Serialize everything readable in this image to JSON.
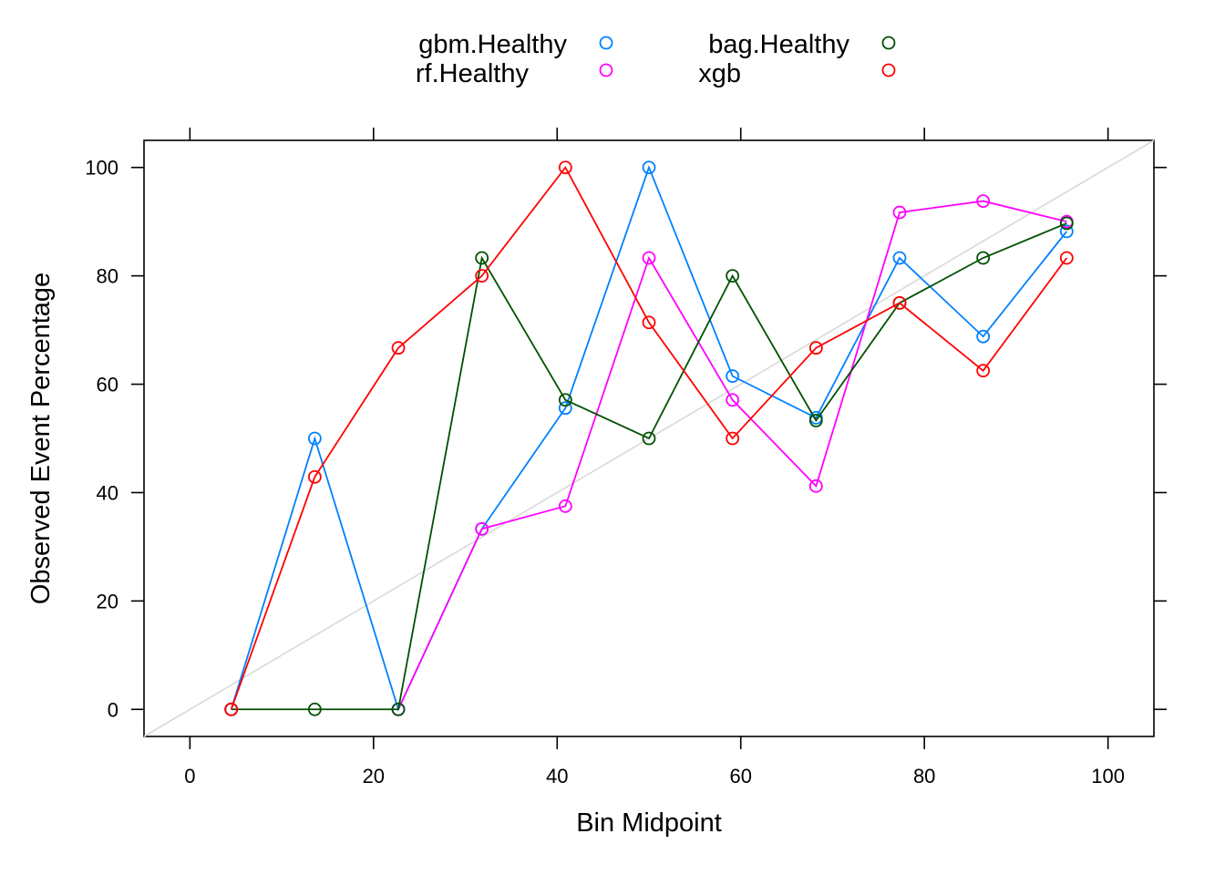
{
  "chart_data": {
    "type": "line",
    "title": "",
    "xlabel": "Bin Midpoint",
    "ylabel": "Observed Event Percentage",
    "xlim": [
      -5,
      105
    ],
    "ylim": [
      -5,
      105
    ],
    "x_ticks": [
      0,
      20,
      40,
      60,
      80,
      100
    ],
    "y_ticks": [
      0,
      20,
      40,
      60,
      80,
      100
    ],
    "grid": false,
    "legend_position": "top",
    "reference_line": {
      "from": [
        -5,
        -5
      ],
      "to": [
        105,
        105
      ],
      "color": "#d9d9d9"
    },
    "x": [
      4.5,
      13.6,
      22.7,
      31.8,
      40.9,
      50.0,
      59.1,
      68.2,
      77.3,
      86.4,
      95.5
    ],
    "series": [
      {
        "name": "gbm.Healthy",
        "color": "#0080ff",
        "values": [
          0,
          50,
          0,
          33.3,
          55.6,
          100,
          61.5,
          53.8,
          83.3,
          68.8,
          88.2
        ]
      },
      {
        "name": "rf.Healthy",
        "color": "#ff00ff",
        "values": [
          0,
          null,
          0,
          33.3,
          37.5,
          83.3,
          57.1,
          41.2,
          91.7,
          93.8,
          90.0
        ]
      },
      {
        "name": "bag.Healthy",
        "color": "#005000",
        "values": [
          0,
          0,
          0,
          83.3,
          57.1,
          50.0,
          80.0,
          53.3,
          75.0,
          83.3,
          89.7
        ]
      },
      {
        "name": "xgb",
        "color": "#ff0000",
        "values": [
          0,
          42.9,
          66.7,
          80.0,
          100,
          71.4,
          50.0,
          66.7,
          75.0,
          62.5,
          83.3
        ]
      }
    ]
  }
}
